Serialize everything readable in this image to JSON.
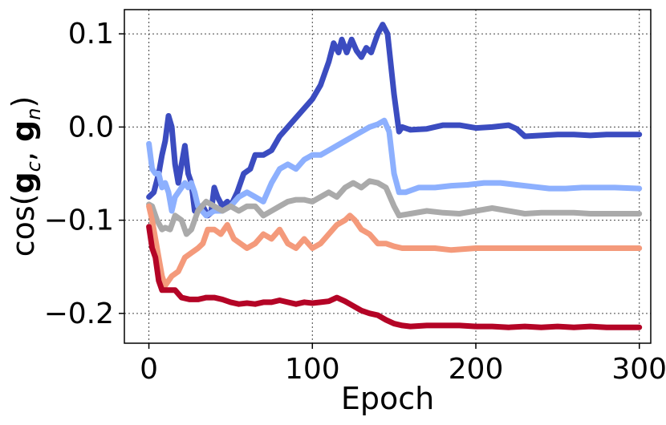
{
  "chart_data": {
    "type": "line",
    "xlabel": "Epoch",
    "ylabel": "cos(g_c, g_n)",
    "ylabel_parts": {
      "prefix": "cos(",
      "a": "g",
      "a_sub": "c",
      "sep": ", ",
      "b": "g",
      "b_sub": "n",
      "suffix": ")"
    },
    "xlim": [
      -15,
      307
    ],
    "ylim": [
      -0.232,
      0.126
    ],
    "xticks": [
      0,
      100,
      200,
      300
    ],
    "xtick_labels": [
      "0",
      "100",
      "200",
      "300"
    ],
    "yticks": [
      -0.2,
      -0.1,
      0.0,
      0.1
    ],
    "ytick_labels": [
      "−0.2",
      "−0.1",
      "0.0",
      "0.1"
    ],
    "grid": true,
    "series": [
      {
        "color": "#3b4cc0",
        "points": [
          [
            0,
            -0.075
          ],
          [
            3,
            -0.07
          ],
          [
            6,
            -0.05
          ],
          [
            8,
            -0.03
          ],
          [
            10,
            -0.015
          ],
          [
            12,
            0.012
          ],
          [
            14,
            0.0
          ],
          [
            16,
            -0.04
          ],
          [
            18,
            -0.06
          ],
          [
            20,
            -0.04
          ],
          [
            22,
            -0.02
          ],
          [
            24,
            -0.05
          ],
          [
            26,
            -0.06
          ],
          [
            28,
            -0.09
          ],
          [
            30,
            -0.085
          ],
          [
            33,
            -0.085
          ],
          [
            36,
            -0.095
          ],
          [
            38,
            -0.092
          ],
          [
            40,
            -0.065
          ],
          [
            42,
            -0.075
          ],
          [
            45,
            -0.085
          ],
          [
            48,
            -0.08
          ],
          [
            50,
            -0.085
          ],
          [
            54,
            -0.07
          ],
          [
            58,
            -0.05
          ],
          [
            62,
            -0.045
          ],
          [
            65,
            -0.03
          ],
          [
            70,
            -0.03
          ],
          [
            75,
            -0.025
          ],
          [
            80,
            -0.01
          ],
          [
            85,
            0.0
          ],
          [
            90,
            0.01
          ],
          [
            95,
            0.02
          ],
          [
            100,
            0.03
          ],
          [
            105,
            0.045
          ],
          [
            110,
            0.07
          ],
          [
            113,
            0.09
          ],
          [
            116,
            0.08
          ],
          [
            118,
            0.094
          ],
          [
            121,
            0.08
          ],
          [
            124,
            0.094
          ],
          [
            127,
            0.082
          ],
          [
            130,
            0.075
          ],
          [
            133,
            0.085
          ],
          [
            136,
            0.08
          ],
          [
            140,
            0.1
          ],
          [
            143,
            0.11
          ],
          [
            146,
            0.1
          ],
          [
            150,
            0.035
          ],
          [
            153,
            -0.005
          ],
          [
            155,
            0.0
          ],
          [
            160,
            -0.003
          ],
          [
            170,
            -0.002
          ],
          [
            180,
            0.002
          ],
          [
            190,
            0.002
          ],
          [
            200,
            -0.001
          ],
          [
            210,
            0.0
          ],
          [
            220,
            0.002
          ],
          [
            225,
            -0.002
          ],
          [
            230,
            -0.01
          ],
          [
            240,
            -0.009
          ],
          [
            250,
            -0.008
          ],
          [
            260,
            -0.008
          ],
          [
            270,
            -0.009
          ],
          [
            280,
            -0.008
          ],
          [
            290,
            -0.008
          ],
          [
            300,
            -0.008
          ]
        ]
      },
      {
        "color": "#8db0fe",
        "points": [
          [
            0,
            -0.018
          ],
          [
            2,
            -0.045
          ],
          [
            4,
            -0.05
          ],
          [
            6,
            -0.05
          ],
          [
            8,
            -0.065
          ],
          [
            10,
            -0.06
          ],
          [
            12,
            -0.07
          ],
          [
            14,
            -0.09
          ],
          [
            16,
            -0.075
          ],
          [
            18,
            -0.07
          ],
          [
            20,
            -0.065
          ],
          [
            22,
            -0.06
          ],
          [
            24,
            -0.065
          ],
          [
            26,
            -0.06
          ],
          [
            28,
            -0.07
          ],
          [
            30,
            -0.085
          ],
          [
            35,
            -0.095
          ],
          [
            40,
            -0.09
          ],
          [
            45,
            -0.09
          ],
          [
            50,
            -0.085
          ],
          [
            55,
            -0.075
          ],
          [
            60,
            -0.07
          ],
          [
            65,
            -0.075
          ],
          [
            70,
            -0.08
          ],
          [
            75,
            -0.06
          ],
          [
            80,
            -0.045
          ],
          [
            85,
            -0.04
          ],
          [
            90,
            -0.045
          ],
          [
            95,
            -0.035
          ],
          [
            100,
            -0.03
          ],
          [
            105,
            -0.03
          ],
          [
            110,
            -0.025
          ],
          [
            115,
            -0.02
          ],
          [
            120,
            -0.015
          ],
          [
            125,
            -0.01
          ],
          [
            130,
            -0.005
          ],
          [
            135,
            0.0
          ],
          [
            140,
            0.003
          ],
          [
            144,
            0.007
          ],
          [
            147,
            -0.005
          ],
          [
            150,
            -0.05
          ],
          [
            153,
            -0.07
          ],
          [
            157,
            -0.07
          ],
          [
            165,
            -0.065
          ],
          [
            175,
            -0.065
          ],
          [
            185,
            -0.063
          ],
          [
            195,
            -0.062
          ],
          [
            205,
            -0.06
          ],
          [
            215,
            -0.06
          ],
          [
            225,
            -0.062
          ],
          [
            235,
            -0.064
          ],
          [
            245,
            -0.066
          ],
          [
            255,
            -0.066
          ],
          [
            265,
            -0.065
          ],
          [
            275,
            -0.065
          ],
          [
            285,
            -0.065
          ],
          [
            300,
            -0.066
          ]
        ]
      },
      {
        "color": "#aaaaaa",
        "points": [
          [
            0,
            -0.083
          ],
          [
            2,
            -0.085
          ],
          [
            5,
            -0.1
          ],
          [
            8,
            -0.11
          ],
          [
            10,
            -0.108
          ],
          [
            13,
            -0.11
          ],
          [
            16,
            -0.095
          ],
          [
            20,
            -0.1
          ],
          [
            23,
            -0.115
          ],
          [
            26,
            -0.11
          ],
          [
            30,
            -0.09
          ],
          [
            35,
            -0.08
          ],
          [
            40,
            -0.085
          ],
          [
            45,
            -0.09
          ],
          [
            50,
            -0.085
          ],
          [
            55,
            -0.09
          ],
          [
            60,
            -0.085
          ],
          [
            65,
            -0.085
          ],
          [
            70,
            -0.095
          ],
          [
            75,
            -0.09
          ],
          [
            80,
            -0.085
          ],
          [
            85,
            -0.08
          ],
          [
            90,
            -0.078
          ],
          [
            95,
            -0.078
          ],
          [
            100,
            -0.08
          ],
          [
            105,
            -0.075
          ],
          [
            110,
            -0.07
          ],
          [
            115,
            -0.075
          ],
          [
            120,
            -0.065
          ],
          [
            125,
            -0.06
          ],
          [
            130,
            -0.065
          ],
          [
            135,
            -0.058
          ],
          [
            140,
            -0.06
          ],
          [
            145,
            -0.065
          ],
          [
            150,
            -0.085
          ],
          [
            153,
            -0.095
          ],
          [
            160,
            -0.093
          ],
          [
            170,
            -0.09
          ],
          [
            180,
            -0.092
          ],
          [
            190,
            -0.093
          ],
          [
            200,
            -0.09
          ],
          [
            210,
            -0.087
          ],
          [
            220,
            -0.09
          ],
          [
            230,
            -0.093
          ],
          [
            240,
            -0.092
          ],
          [
            250,
            -0.092
          ],
          [
            260,
            -0.092
          ],
          [
            270,
            -0.093
          ],
          [
            280,
            -0.093
          ],
          [
            290,
            -0.093
          ],
          [
            300,
            -0.093
          ]
        ]
      },
      {
        "color": "#f49a7b",
        "points": [
          [
            0,
            -0.085
          ],
          [
            2,
            -0.1
          ],
          [
            4,
            -0.12
          ],
          [
            6,
            -0.14
          ],
          [
            8,
            -0.16
          ],
          [
            10,
            -0.17
          ],
          [
            14,
            -0.16
          ],
          [
            18,
            -0.155
          ],
          [
            22,
            -0.14
          ],
          [
            26,
            -0.135
          ],
          [
            30,
            -0.13
          ],
          [
            33,
            -0.125
          ],
          [
            36,
            -0.11
          ],
          [
            40,
            -0.11
          ],
          [
            44,
            -0.115
          ],
          [
            48,
            -0.105
          ],
          [
            52,
            -0.12
          ],
          [
            56,
            -0.125
          ],
          [
            60,
            -0.13
          ],
          [
            65,
            -0.125
          ],
          [
            70,
            -0.115
          ],
          [
            75,
            -0.12
          ],
          [
            80,
            -0.11
          ],
          [
            85,
            -0.125
          ],
          [
            90,
            -0.13
          ],
          [
            95,
            -0.12
          ],
          [
            100,
            -0.13
          ],
          [
            105,
            -0.125
          ],
          [
            110,
            -0.115
          ],
          [
            115,
            -0.105
          ],
          [
            120,
            -0.1
          ],
          [
            123,
            -0.095
          ],
          [
            126,
            -0.1
          ],
          [
            130,
            -0.11
          ],
          [
            135,
            -0.115
          ],
          [
            140,
            -0.125
          ],
          [
            145,
            -0.125
          ],
          [
            150,
            -0.128
          ],
          [
            155,
            -0.13
          ],
          [
            165,
            -0.13
          ],
          [
            175,
            -0.13
          ],
          [
            185,
            -0.132
          ],
          [
            200,
            -0.13
          ],
          [
            215,
            -0.13
          ],
          [
            230,
            -0.13
          ],
          [
            245,
            -0.13
          ],
          [
            260,
            -0.13
          ],
          [
            275,
            -0.13
          ],
          [
            290,
            -0.13
          ],
          [
            300,
            -0.13
          ]
        ]
      },
      {
        "color": "#b40426",
        "points": [
          [
            0,
            -0.107
          ],
          [
            2,
            -0.13
          ],
          [
            4,
            -0.14
          ],
          [
            6,
            -0.165
          ],
          [
            8,
            -0.175
          ],
          [
            12,
            -0.175
          ],
          [
            16,
            -0.175
          ],
          [
            20,
            -0.183
          ],
          [
            25,
            -0.185
          ],
          [
            30,
            -0.185
          ],
          [
            35,
            -0.183
          ],
          [
            40,
            -0.183
          ],
          [
            45,
            -0.185
          ],
          [
            50,
            -0.188
          ],
          [
            55,
            -0.19
          ],
          [
            60,
            -0.189
          ],
          [
            65,
            -0.19
          ],
          [
            70,
            -0.188
          ],
          [
            75,
            -0.188
          ],
          [
            80,
            -0.186
          ],
          [
            85,
            -0.188
          ],
          [
            90,
            -0.19
          ],
          [
            95,
            -0.188
          ],
          [
            100,
            -0.189
          ],
          [
            105,
            -0.188
          ],
          [
            110,
            -0.187
          ],
          [
            115,
            -0.183
          ],
          [
            120,
            -0.187
          ],
          [
            125,
            -0.192
          ],
          [
            130,
            -0.197
          ],
          [
            135,
            -0.2
          ],
          [
            140,
            -0.202
          ],
          [
            145,
            -0.207
          ],
          [
            150,
            -0.211
          ],
          [
            155,
            -0.213
          ],
          [
            160,
            -0.214
          ],
          [
            170,
            -0.213
          ],
          [
            180,
            -0.213
          ],
          [
            190,
            -0.213
          ],
          [
            200,
            -0.214
          ],
          [
            210,
            -0.214
          ],
          [
            220,
            -0.215
          ],
          [
            230,
            -0.214
          ],
          [
            240,
            -0.215
          ],
          [
            250,
            -0.214
          ],
          [
            260,
            -0.215
          ],
          [
            270,
            -0.214
          ],
          [
            280,
            -0.215
          ],
          [
            290,
            -0.215
          ],
          [
            300,
            -0.215
          ]
        ]
      }
    ]
  }
}
